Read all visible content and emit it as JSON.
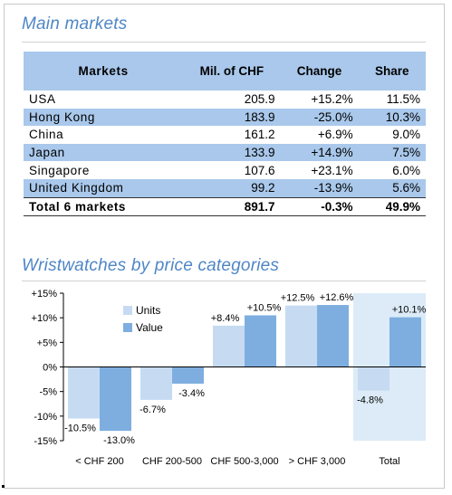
{
  "table_section": {
    "title": "Main markets",
    "headers": [
      "Markets",
      "Mil. of CHF",
      "Change",
      "Share"
    ],
    "rows": [
      {
        "market": "USA",
        "value": "205.9",
        "change": "+15.2%",
        "share": "11.5%"
      },
      {
        "market": "Hong Kong",
        "value": "183.9",
        "change": "-25.0%",
        "share": "10.3%"
      },
      {
        "market": "China",
        "value": "161.2",
        "change": "+6.9%",
        "share": "9.0%"
      },
      {
        "market": "Japan",
        "value": "133.9",
        "change": "+14.9%",
        "share": "7.5%"
      },
      {
        "market": "Singapore",
        "value": "107.6",
        "change": "+23.1%",
        "share": "6.0%"
      },
      {
        "market": "United Kingdom",
        "value": "99.2",
        "change": "-13.9%",
        "share": "5.6%"
      }
    ],
    "total": {
      "market": "Total 6 markets",
      "value": "891.7",
      "change": "-0.3%",
      "share": "49.9%"
    }
  },
  "chart_section": {
    "title": "Wristwatches by price categories"
  },
  "colors": {
    "units": "#c6dbf2",
    "value": "#7eaee0",
    "header_band": "#a9c8eb",
    "title": "#4f86c6",
    "total_highlight": "#dcebf7"
  },
  "chart_data": {
    "type": "bar",
    "categories": [
      "< CHF 200",
      "CHF 200-500",
      "CHF 500-3,000",
      "> CHF 3,000",
      "Total"
    ],
    "series": [
      {
        "name": "Units",
        "values": [
          -10.5,
          -6.7,
          8.4,
          12.5,
          -4.8
        ],
        "labels": [
          "-10.5%",
          "-6.7%",
          "+8.4%",
          "+12.5%",
          "-4.8%"
        ]
      },
      {
        "name": "Value",
        "values": [
          -13.0,
          -3.4,
          10.5,
          12.6,
          10.1
        ],
        "labels": [
          "-13.0%",
          "-3.4%",
          "+10.5%",
          "+12.6%",
          "+10.1%"
        ]
      }
    ],
    "yticks": [
      "+15%",
      "+10%",
      "+5%",
      "0%",
      "-5%",
      "-10%",
      "-15%"
    ],
    "ytick_values": [
      15,
      10,
      5,
      0,
      -5,
      -10,
      -15
    ],
    "ylim": [
      -15,
      15
    ],
    "legend_position": "upper-left",
    "grid": false
  }
}
